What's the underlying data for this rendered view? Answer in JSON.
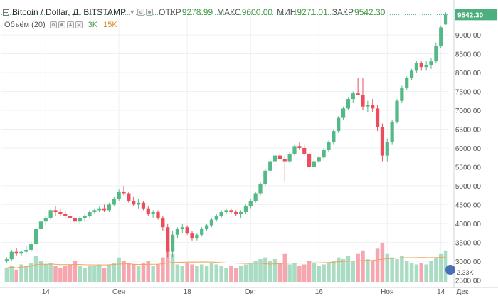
{
  "header": {
    "symbol": "Bitcoin / Dollar, Д, BITSTAMP",
    "ohlc": [
      {
        "label": "ОТКР",
        "value": "9278.99"
      },
      {
        "label": "МАКС",
        "value": "9600.00"
      },
      {
        "label": "МИН",
        "value": "9271.01"
      },
      {
        "label": "ЗАКР",
        "value": "9542.30"
      }
    ]
  },
  "volume_legend": {
    "name": "Объём (20)",
    "value1": "3K",
    "value2": "15K"
  },
  "colors": {
    "up": "#53b987",
    "down": "#eb4d5c",
    "up_vol": "#a9dcc3",
    "down_vol": "#f5a6ae",
    "ma": "#f0a35e",
    "grid": "#eef0f3",
    "last_price_bg": "#4caf7d"
  },
  "chart_data": {
    "type": "candlestick",
    "y_axis_ticks": [
      "9000.00",
      "8500.00",
      "8000.00",
      "7500.00",
      "7000.00",
      "6500.00",
      "6000.00",
      "5500.00",
      "5000.00",
      "4500.00",
      "4000.00",
      "3500.00",
      "3000.00",
      "2500.00"
    ],
    "y_axis_range": [
      2450,
      9700
    ],
    "x_axis_ticks": [
      "14",
      "Сен",
      "18",
      "Окт",
      "16",
      "Ноя",
      "14",
      "Дек"
    ],
    "last_price": "9542.30",
    "volume_axis_label": "2.33K",
    "candles": [
      [
        3000,
        3100,
        2950,
        3050
      ],
      [
        3050,
        3300,
        3000,
        3250
      ],
      [
        3250,
        3350,
        3150,
        3200
      ],
      [
        3200,
        3280,
        3150,
        3250
      ],
      [
        3250,
        3400,
        3200,
        3300
      ],
      [
        3300,
        3500,
        3250,
        3450
      ],
      [
        3450,
        3900,
        3400,
        3850
      ],
      [
        3850,
        4100,
        3800,
        4050
      ],
      [
        4050,
        4200,
        3950,
        4150
      ],
      [
        4150,
        4400,
        4100,
        4350
      ],
      [
        4350,
        4450,
        4200,
        4300
      ],
      [
        4300,
        4400,
        4200,
        4250
      ],
      [
        4250,
        4350,
        4150,
        4200
      ],
      [
        4200,
        4300,
        4000,
        4150
      ],
      [
        4150,
        4200,
        3950,
        4050
      ],
      [
        4050,
        4200,
        4000,
        4150
      ],
      [
        4150,
        4250,
        4050,
        4200
      ],
      [
        4200,
        4350,
        4150,
        4300
      ],
      [
        4300,
        4400,
        4250,
        4350
      ],
      [
        4350,
        4450,
        4300,
        4400
      ],
      [
        4400,
        4500,
        4300,
        4350
      ],
      [
        4350,
        4550,
        4300,
        4500
      ],
      [
        4500,
        4700,
        4450,
        4650
      ],
      [
        4650,
        4900,
        4600,
        4850
      ],
      [
        4850,
        5000,
        4750,
        4800
      ],
      [
        4800,
        4850,
        4550,
        4600
      ],
      [
        4600,
        4700,
        4450,
        4500
      ],
      [
        4500,
        4650,
        4400,
        4550
      ],
      [
        4550,
        4600,
        4350,
        4400
      ],
      [
        4400,
        4450,
        4200,
        4250
      ],
      [
        4250,
        4350,
        4150,
        4300
      ],
      [
        4300,
        4350,
        4100,
        4150
      ],
      [
        4150,
        4200,
        3800,
        3900
      ],
      [
        3900,
        4000,
        3100,
        3250
      ],
      [
        3250,
        3800,
        3100,
        3700
      ],
      [
        3700,
        3900,
        3600,
        3850
      ],
      [
        3850,
        4000,
        3750,
        3900
      ],
      [
        3900,
        3950,
        3700,
        3750
      ],
      [
        3750,
        3800,
        3550,
        3600
      ],
      [
        3600,
        3750,
        3550,
        3700
      ],
      [
        3700,
        3900,
        3650,
        3850
      ],
      [
        3850,
        4000,
        3800,
        3950
      ],
      [
        3950,
        4150,
        3900,
        4100
      ],
      [
        4100,
        4250,
        4050,
        4200
      ],
      [
        4200,
        4350,
        4150,
        4300
      ],
      [
        4300,
        4400,
        4250,
        4350
      ],
      [
        4350,
        4400,
        4250,
        4300
      ],
      [
        4300,
        4350,
        4200,
        4250
      ],
      [
        4250,
        4350,
        4150,
        4300
      ],
      [
        4300,
        4500,
        4250,
        4450
      ],
      [
        4450,
        4650,
        4400,
        4600
      ],
      [
        4600,
        4850,
        4550,
        4800
      ],
      [
        4800,
        5100,
        4750,
        5050
      ],
      [
        5050,
        5450,
        5000,
        5400
      ],
      [
        5400,
        5700,
        5350,
        5650
      ],
      [
        5650,
        5850,
        5550,
        5800
      ],
      [
        5800,
        5900,
        5650,
        5700
      ],
      [
        5700,
        5800,
        5100,
        5650
      ],
      [
        5650,
        5900,
        5600,
        5850
      ],
      [
        5850,
        6100,
        5800,
        6050
      ],
      [
        6050,
        6150,
        5950,
        6000
      ],
      [
        6000,
        6100,
        5800,
        5850
      ],
      [
        5850,
        5950,
        5400,
        5500
      ],
      [
        5500,
        5700,
        5450,
        5650
      ],
      [
        5650,
        5800,
        5600,
        5750
      ],
      [
        5750,
        6000,
        5700,
        5950
      ],
      [
        5950,
        6200,
        5900,
        6150
      ],
      [
        6150,
        6500,
        6100,
        6450
      ],
      [
        6450,
        6850,
        6400,
        6800
      ],
      [
        6800,
        7100,
        6750,
        7050
      ],
      [
        7050,
        7350,
        7000,
        7300
      ],
      [
        7300,
        7500,
        7200,
        7450
      ],
      [
        7450,
        7850,
        7400,
        7400
      ],
      [
        7400,
        7850,
        7000,
        7100
      ],
      [
        7100,
        7250,
        6950,
        7150
      ],
      [
        7150,
        7300,
        6950,
        7050
      ],
      [
        7050,
        7150,
        6450,
        6550
      ],
      [
        6550,
        6650,
        5650,
        5800
      ],
      [
        5800,
        6250,
        5650,
        6150
      ],
      [
        6150,
        6750,
        6100,
        6700
      ],
      [
        6700,
        7300,
        6650,
        7250
      ],
      [
        7250,
        7650,
        7200,
        7600
      ],
      [
        7600,
        7900,
        7550,
        7850
      ],
      [
        7850,
        8100,
        7800,
        8050
      ],
      [
        8050,
        8300,
        8000,
        8250
      ],
      [
        8250,
        8300,
        8050,
        8150
      ],
      [
        8150,
        8300,
        8050,
        8200
      ],
      [
        8200,
        8400,
        8100,
        8300
      ],
      [
        8300,
        8800,
        8250,
        8700
      ],
      [
        8700,
        9250,
        8650,
        9200
      ],
      [
        9279,
        9600,
        9271,
        9542
      ]
    ],
    "volumes": [
      0.8,
      0.9,
      0.7,
      1.0,
      0.9,
      1.1,
      1.5,
      1.2,
      1.0,
      1.1,
      0.9,
      0.8,
      0.9,
      1.0,
      1.2,
      0.9,
      0.8,
      0.9,
      0.9,
      1.0,
      0.8,
      1.0,
      1.1,
      1.4,
      1.2,
      1.1,
      1.0,
      0.9,
      1.1,
      1.2,
      0.9,
      1.0,
      1.4,
      2.0,
      1.6,
      1.0,
      0.9,
      1.1,
      1.0,
      0.9,
      1.0,
      0.9,
      1.1,
      1.0,
      0.9,
      0.8,
      0.9,
      0.8,
      0.9,
      1.0,
      1.1,
      1.2,
      1.3,
      1.4,
      1.2,
      1.3,
      1.1,
      1.6,
      1.0,
      1.1,
      0.9,
      1.0,
      1.2,
      1.1,
      0.9,
      1.0,
      1.1,
      1.2,
      1.4,
      1.3,
      1.5,
      1.2,
      1.6,
      1.8,
      1.3,
      1.2,
      1.9,
      2.2,
      1.6,
      1.4,
      1.3,
      1.5,
      1.2,
      1.1,
      1.0,
      1.1,
      1.0,
      1.2,
      1.4,
      1.6,
      1.8
    ]
  }
}
